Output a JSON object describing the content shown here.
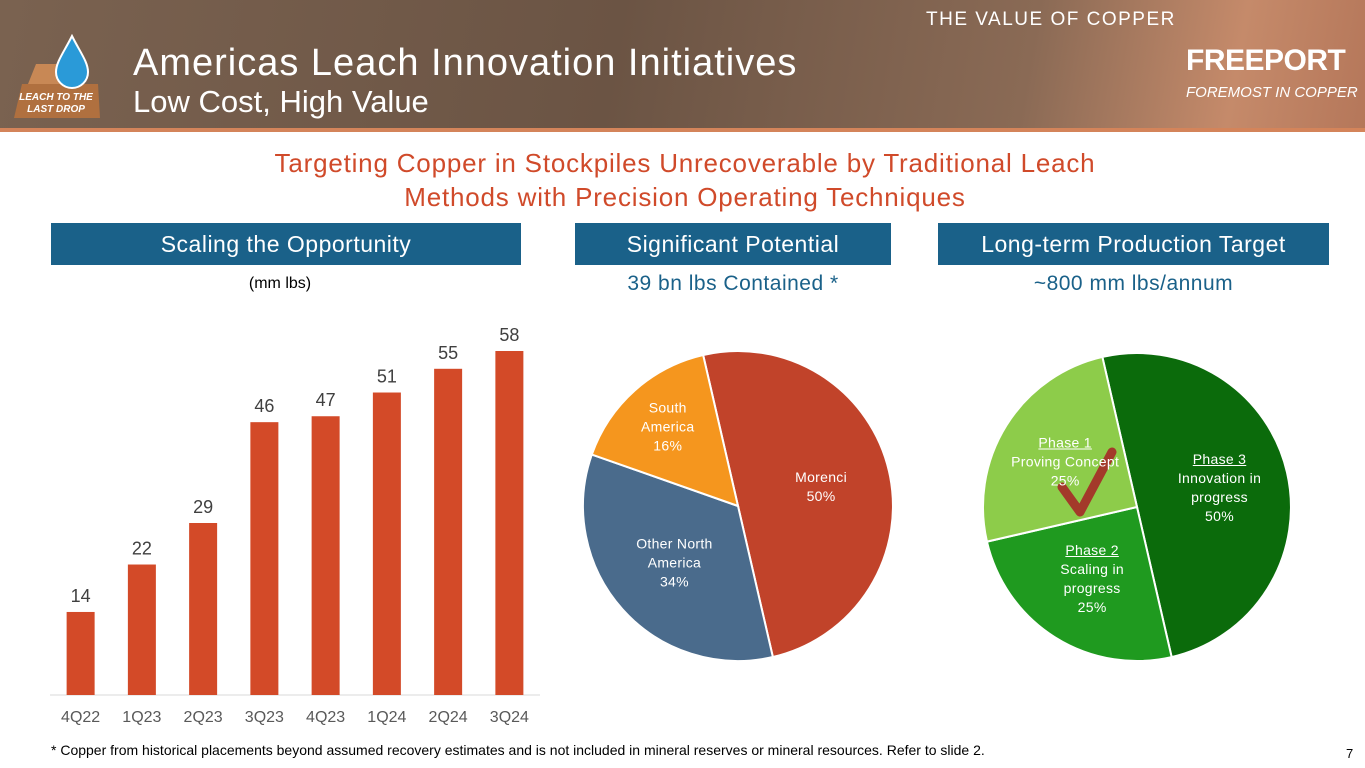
{
  "header": {
    "title": "Americas Leach Innovation Initiatives",
    "subtitle": "Low Cost, High Value",
    "tagline": "THE VALUE OF COPPER",
    "brand": "FREEPORT",
    "brand_tagline": "FOREMOST IN COPPER",
    "logo_text": "LEACH TO THE LAST DROP"
  },
  "headline": "Targeting Copper in Stockpiles Unrecoverable by Traditional Leach Methods with Precision Operating Techniques",
  "sections": [
    "Scaling the Opportunity",
    "Significant Potential",
    "Long-term Production Target"
  ],
  "chart_data": [
    {
      "type": "bar",
      "unit": "(mm lbs)",
      "categories": [
        "4Q22",
        "1Q23",
        "2Q23",
        "3Q23",
        "4Q23",
        "1Q24",
        "2Q24",
        "3Q24"
      ],
      "values": [
        14,
        22,
        29,
        46,
        47,
        51,
        55,
        58
      ],
      "color": "#d34a28"
    },
    {
      "type": "pie",
      "title": "39 bn lbs Contained *",
      "categories": [
        "Morenci",
        "Other North America",
        "South America"
      ],
      "values": [
        50,
        34,
        16
      ],
      "value_labels": [
        "50%",
        "34%",
        "16%"
      ],
      "colors": [
        "#c1432a",
        "#4a6b8c",
        "#f5961e"
      ]
    },
    {
      "type": "pie",
      "title": "~800 mm lbs/annum",
      "categories": [
        "Phase 3",
        "Phase 2",
        "Phase 1"
      ],
      "descriptions": [
        "Innovation in progress",
        "Scaling in progress",
        "Proving Concept"
      ],
      "values": [
        50,
        25,
        25
      ],
      "value_labels": [
        "50%",
        "25%",
        "25%"
      ],
      "colors": [
        "#0b6b0b",
        "#1f9a1f",
        "#8dcc4a"
      ]
    }
  ],
  "footnote": "* Copper from historical placements beyond assumed recovery estimates and is not included in mineral reserves or mineral resources. Refer to slide 2.",
  "page_number": "7"
}
